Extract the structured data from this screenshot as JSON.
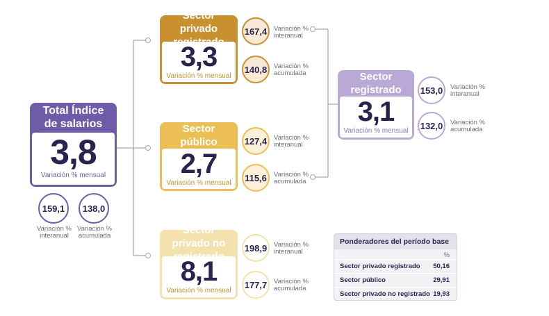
{
  "total": {
    "title": "Total Índice de salarios",
    "value": "3,8",
    "caption": "Variación % mensual",
    "interanual": "159,1",
    "acumulada": "138,0",
    "interanual_label": "Variación % interanual",
    "acumulada_label": "Variación % acumulada"
  },
  "privado_registrado": {
    "title": "Sector privado registrado",
    "value": "3,3",
    "caption": "Variación % mensual",
    "interanual": "167,4",
    "acumulada": "140,8",
    "interanual_label": "Variación % interanual",
    "acumulada_label": "Variación % acumulada"
  },
  "publico": {
    "title": "Sector público",
    "value": "2,7",
    "caption": "Variación % mensual",
    "interanual": "127,4",
    "acumulada": "115,6",
    "interanual_label": "Variación % interanual",
    "acumulada_label": "Variación % acumulada"
  },
  "no_registrado": {
    "title": "Sector privado no registrado",
    "value": "8,1",
    "caption": "Variación % mensual",
    "interanual": "198,9",
    "acumulada": "177,7",
    "interanual_label": "Variación % interanual",
    "acumulada_label": "Variación % acumulada"
  },
  "registrado": {
    "title": "Sector registrado",
    "value": "3,1",
    "caption": "Variación % mensual",
    "interanual": "153,0",
    "acumulada": "132,0",
    "interanual_label": "Variación % interanual",
    "acumulada_label": "Variación % acumulada"
  },
  "ponderadores": {
    "title": "Ponderadores del período base",
    "unit": "%",
    "rows": [
      {
        "label": "Sector privado registrado",
        "value": "50,16"
      },
      {
        "label": "Sector público",
        "value": "29,91"
      },
      {
        "label": "Sector privado no registrado",
        "value": "19,93"
      }
    ]
  },
  "colors": {
    "total": "#6e5ca8",
    "privado_registrado": "#c9902f",
    "publico": "#ebbf55",
    "no_registrado": "#f3e1ae",
    "registrado": "#b9a9d7",
    "connector": "#a7a7a7"
  }
}
